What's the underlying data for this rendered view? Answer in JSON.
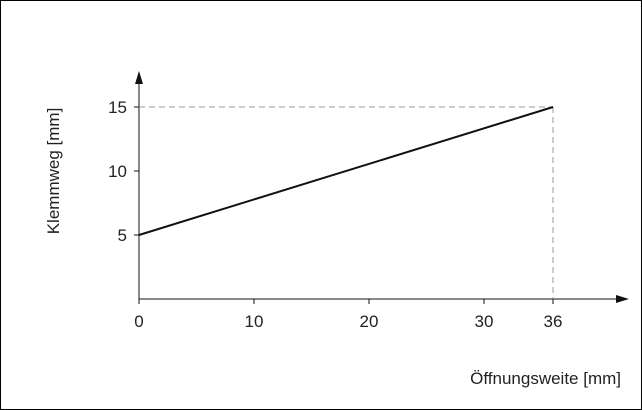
{
  "chart_data": {
    "type": "line",
    "title": "",
    "xlabel": "Öffnungsweite [mm]",
    "ylabel": "Klemmweg [mm]",
    "xlim": [
      0,
      40
    ],
    "ylim": [
      0,
      18
    ],
    "x_ticks": [
      0,
      10,
      20,
      30,
      36
    ],
    "y_ticks": [
      5,
      10,
      15
    ],
    "x_tick_labels": [
      "0",
      "10",
      "20",
      "30",
      "36"
    ],
    "y_tick_labels": [
      "5",
      "10",
      "15"
    ],
    "series": [
      {
        "x": [
          0,
          36
        ],
        "y": [
          5,
          15
        ]
      }
    ],
    "reference_lines": {
      "x": 36,
      "y": 15,
      "style": "dashed"
    },
    "grid": false,
    "colors": {
      "line": "#111111",
      "axis": "#111111",
      "reference": "#999999"
    }
  }
}
